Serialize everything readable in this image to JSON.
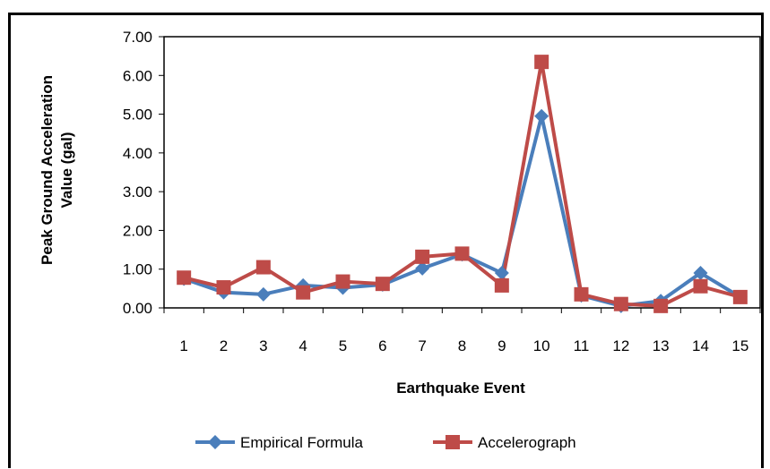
{
  "chart_data": {
    "type": "line",
    "categories": [
      "1",
      "2",
      "3",
      "4",
      "5",
      "6",
      "7",
      "8",
      "9",
      "10",
      "11",
      "12",
      "13",
      "14",
      "15"
    ],
    "series": [
      {
        "name": "Empirical Formula",
        "color": "#4A7EBB",
        "marker": "diamond",
        "values": [
          0.75,
          0.4,
          0.35,
          0.58,
          0.52,
          0.6,
          1.02,
          1.38,
          0.9,
          4.95,
          0.32,
          0.05,
          0.18,
          0.9,
          0.28
        ]
      },
      {
        "name": "Accelerograph",
        "color": "#BE4B48",
        "marker": "square",
        "values": [
          0.78,
          0.53,
          1.05,
          0.4,
          0.68,
          0.62,
          1.32,
          1.4,
          0.58,
          6.35,
          0.35,
          0.1,
          0.05,
          0.56,
          0.28
        ]
      }
    ],
    "title": "",
    "xlabel": "Earthquake Event",
    "ylabel_lines": [
      "Peak Ground Acceleration",
      "Value (gal)"
    ],
    "ylim": [
      0,
      7
    ],
    "yticks": [
      "0.00",
      "1.00",
      "2.00",
      "3.00",
      "4.00",
      "5.00",
      "6.00",
      "7.00"
    ],
    "grid": false,
    "legend_position": "bottom"
  }
}
